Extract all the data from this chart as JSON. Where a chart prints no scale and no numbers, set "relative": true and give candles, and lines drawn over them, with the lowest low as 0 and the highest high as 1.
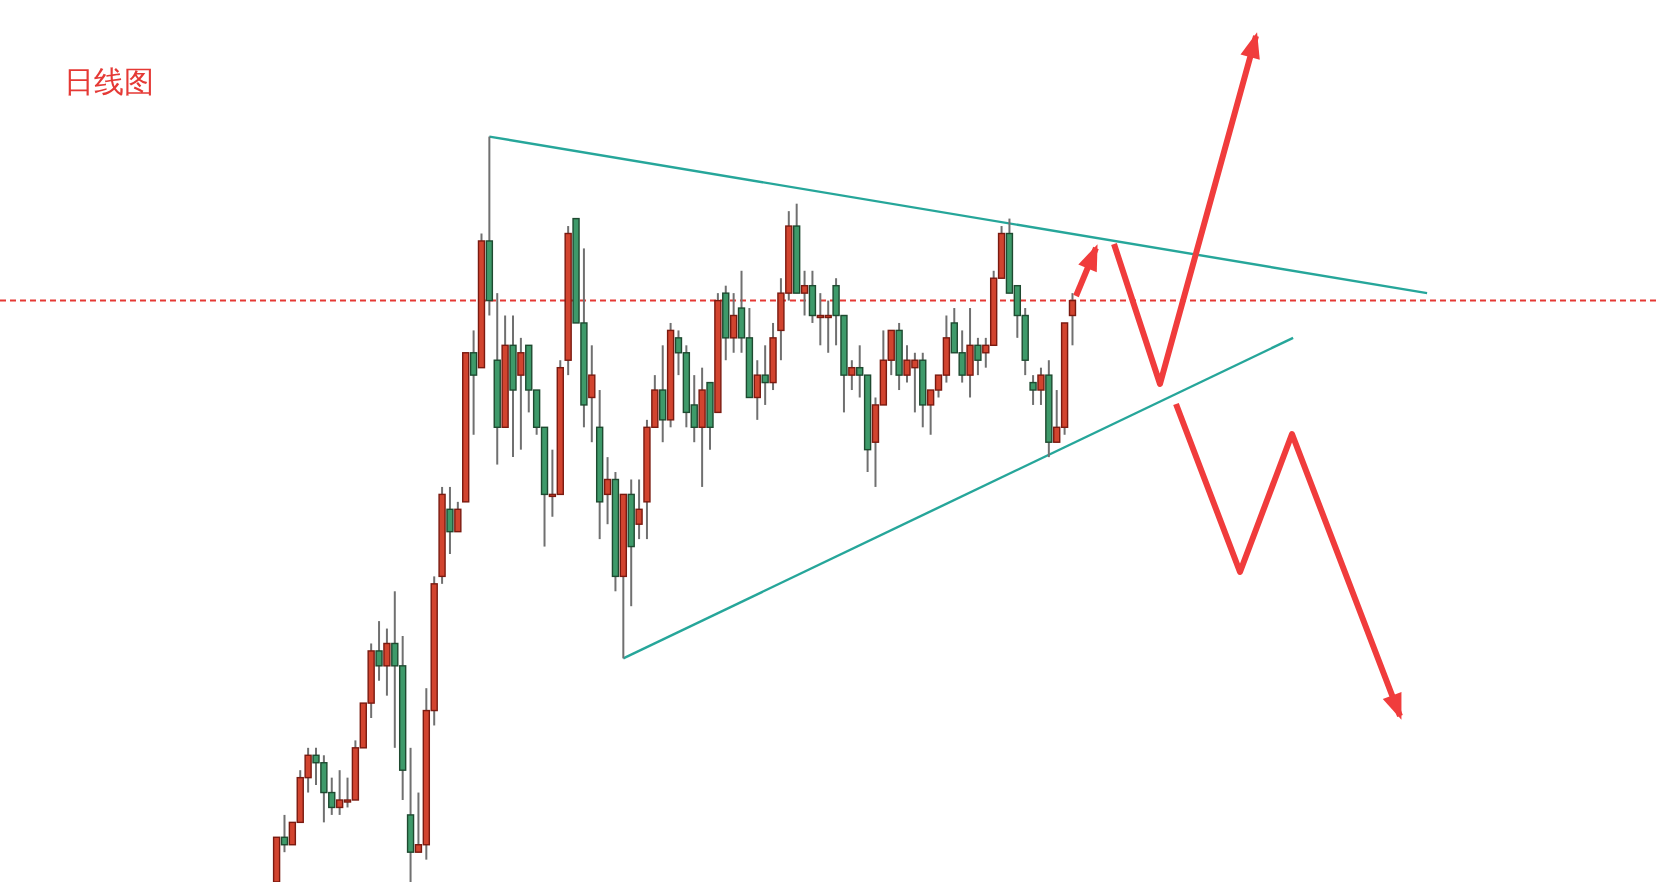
{
  "chart_data": {
    "type": "candlestick",
    "title": "日线图",
    "relative": true,
    "categories": [
      null,
      null,
      null,
      null,
      null,
      null,
      null,
      null,
      null,
      null,
      null,
      null,
      null,
      null,
      null,
      null,
      null,
      null,
      null,
      null,
      null,
      null,
      null,
      null,
      null,
      null,
      null,
      null,
      null,
      null,
      null,
      null,
      null,
      null,
      null,
      null,
      null,
      null,
      null,
      null,
      null,
      null,
      null,
      null,
      null,
      null,
      null,
      null,
      null,
      null,
      null,
      null,
      null,
      null,
      null,
      null,
      null,
      null,
      null,
      null,
      null,
      null,
      null,
      null,
      null,
      null,
      null,
      null,
      null,
      null,
      null,
      null,
      null,
      null,
      null,
      null,
      null,
      null,
      null,
      null,
      null,
      null,
      null,
      null,
      null,
      null,
      null,
      null,
      null,
      null,
      null,
      null,
      null,
      null,
      null,
      null,
      null,
      null,
      null,
      null,
      null,
      null,
      null,
      null,
      null,
      null,
      null,
      null,
      null,
      null,
      null,
      null,
      null,
      null,
      null,
      null,
      null,
      null,
      null,
      null,
      null,
      null,
      null,
      null,
      null,
      null,
      null,
      null,
      null,
      null,
      null,
      null,
      null,
      null,
      null,
      null,
      null,
      null,
      null,
      null,
      null,
      null,
      null,
      null,
      null,
      null,
      null
    ],
    "ohlc": [
      [
        0.0,
        0.06,
        0.0,
        0.06
      ],
      [
        0.06,
        0.09,
        0.04,
        0.05
      ],
      [
        0.05,
        0.08,
        0.05,
        0.08
      ],
      [
        0.08,
        0.15,
        0.08,
        0.14
      ],
      [
        0.14,
        0.18,
        0.12,
        0.17
      ],
      [
        0.17,
        0.18,
        0.13,
        0.16
      ],
      [
        0.16,
        0.17,
        0.08,
        0.12
      ],
      [
        0.12,
        0.14,
        0.09,
        0.1
      ],
      [
        0.1,
        0.15,
        0.09,
        0.11
      ],
      [
        0.11,
        0.14,
        0.1,
        0.11
      ],
      [
        0.11,
        0.19,
        0.11,
        0.18
      ],
      [
        0.18,
        0.24,
        0.18,
        0.24
      ],
      [
        0.24,
        0.32,
        0.22,
        0.31
      ],
      [
        0.31,
        0.35,
        0.27,
        0.29
      ],
      [
        0.29,
        0.34,
        0.25,
        0.32
      ],
      [
        0.32,
        0.39,
        0.18,
        0.29
      ],
      [
        0.29,
        0.33,
        0.11,
        0.15
      ],
      [
        0.09,
        0.18,
        0.0,
        0.04
      ],
      [
        0.04,
        0.12,
        0.04,
        0.05
      ],
      [
        0.05,
        0.26,
        0.03,
        0.23
      ],
      [
        0.23,
        0.41,
        0.21,
        0.4
      ],
      [
        0.41,
        0.53,
        0.4,
        0.52
      ],
      [
        0.5,
        0.53,
        0.44,
        0.47
      ],
      [
        0.47,
        0.51,
        0.47,
        0.5
      ],
      [
        0.51,
        0.71,
        0.51,
        0.71
      ],
      [
        0.71,
        0.74,
        0.6,
        0.68
      ],
      [
        0.69,
        0.87,
        0.69,
        0.86
      ],
      [
        0.86,
        1.0,
        0.76,
        0.78
      ],
      [
        0.7,
        0.79,
        0.56,
        0.61
      ],
      [
        0.61,
        0.76,
        0.61,
        0.72
      ],
      [
        0.72,
        0.76,
        0.57,
        0.66
      ],
      [
        0.68,
        0.73,
        0.58,
        0.71
      ],
      [
        0.72,
        0.72,
        0.63,
        0.66
      ],
      [
        0.66,
        0.66,
        0.6,
        0.61
      ],
      [
        0.61,
        0.61,
        0.45,
        0.52
      ],
      [
        0.52,
        0.58,
        0.49,
        0.52
      ],
      [
        0.52,
        0.7,
        0.52,
        0.69
      ],
      [
        0.7,
        0.88,
        0.68,
        0.87
      ],
      [
        0.89,
        0.89,
        0.75,
        0.75
      ],
      [
        0.75,
        0.85,
        0.61,
        0.64
      ],
      [
        0.65,
        0.72,
        0.59,
        0.68
      ],
      [
        0.61,
        0.66,
        0.46,
        0.51
      ],
      [
        0.52,
        0.57,
        0.48,
        0.54
      ],
      [
        0.54,
        0.55,
        0.39,
        0.41
      ],
      [
        0.41,
        0.52,
        0.3,
        0.52
      ],
      [
        0.52,
        0.54,
        0.37,
        0.45
      ],
      [
        0.48,
        0.54,
        0.46,
        0.5
      ],
      [
        0.51,
        0.62,
        0.46,
        0.61
      ],
      [
        0.61,
        0.68,
        0.61,
        0.66
      ],
      [
        0.66,
        0.72,
        0.59,
        0.62
      ],
      [
        0.62,
        0.75,
        0.61,
        0.74
      ],
      [
        0.73,
        0.74,
        0.68,
        0.71
      ],
      [
        0.71,
        0.72,
        0.61,
        0.63
      ],
      [
        0.64,
        0.68,
        0.59,
        0.61
      ],
      [
        0.61,
        0.69,
        0.53,
        0.66
      ],
      [
        0.67,
        0.67,
        0.58,
        0.61
      ],
      [
        0.63,
        0.79,
        0.63,
        0.78
      ],
      [
        0.79,
        0.8,
        0.7,
        0.73
      ],
      [
        0.73,
        0.79,
        0.71,
        0.76
      ],
      [
        0.77,
        0.82,
        0.71,
        0.73
      ],
      [
        0.73,
        0.77,
        0.65,
        0.65
      ],
      [
        0.65,
        0.7,
        0.62,
        0.68
      ],
      [
        0.68,
        0.72,
        0.64,
        0.67
      ],
      [
        0.67,
        0.75,
        0.66,
        0.73
      ],
      [
        0.74,
        0.81,
        0.7,
        0.79
      ],
      [
        0.79,
        0.9,
        0.78,
        0.88
      ],
      [
        0.88,
        0.91,
        0.79,
        0.79
      ],
      [
        0.79,
        0.82,
        0.76,
        0.8
      ],
      [
        0.8,
        0.82,
        0.75,
        0.76
      ],
      [
        0.76,
        0.79,
        0.72,
        0.76
      ],
      [
        0.76,
        0.78,
        0.71,
        0.76
      ],
      [
        0.8,
        0.81,
        0.72,
        0.76
      ],
      [
        0.76,
        0.76,
        0.63,
        0.68
      ],
      [
        0.68,
        0.7,
        0.66,
        0.69
      ],
      [
        0.69,
        0.72,
        0.65,
        0.68
      ],
      [
        0.68,
        0.68,
        0.55,
        0.58
      ],
      [
        0.59,
        0.65,
        0.53,
        0.64
      ],
      [
        0.64,
        0.74,
        0.64,
        0.7
      ],
      [
        0.7,
        0.74,
        0.68,
        0.74
      ],
      [
        0.74,
        0.75,
        0.66,
        0.68
      ],
      [
        0.68,
        0.72,
        0.67,
        0.7
      ],
      [
        0.69,
        0.71,
        0.63,
        0.7
      ],
      [
        0.7,
        0.71,
        0.61,
        0.64
      ],
      [
        0.64,
        0.66,
        0.6,
        0.66
      ],
      [
        0.66,
        0.68,
        0.65,
        0.68
      ],
      [
        0.68,
        0.76,
        0.67,
        0.73
      ],
      [
        0.75,
        0.77,
        0.71,
        0.71
      ],
      [
        0.71,
        0.74,
        0.67,
        0.68
      ],
      [
        0.68,
        0.77,
        0.65,
        0.72
      ],
      [
        0.72,
        0.73,
        0.68,
        0.7
      ],
      [
        0.71,
        0.73,
        0.69,
        0.72
      ],
      [
        0.72,
        0.82,
        0.72,
        0.81
      ],
      [
        0.81,
        0.88,
        0.81,
        0.87
      ],
      [
        0.87,
        0.89,
        0.79,
        0.79
      ],
      [
        0.8,
        0.8,
        0.73,
        0.76
      ],
      [
        0.76,
        0.77,
        0.68,
        0.7
      ],
      [
        0.67,
        0.68,
        0.64,
        0.66
      ],
      [
        0.66,
        0.69,
        0.64,
        0.68
      ],
      [
        0.68,
        0.7,
        0.57,
        0.59
      ],
      [
        0.59,
        0.66,
        0.59,
        0.61
      ],
      [
        0.61,
        0.75,
        0.6,
        0.75
      ],
      [
        0.76,
        0.79,
        0.72,
        0.78
      ],
      null,
      null,
      null,
      null,
      null,
      null,
      null,
      null,
      null,
      null,
      null,
      null,
      null,
      null,
      null,
      null,
      null,
      null,
      null,
      null,
      null,
      null,
      null,
      null,
      null,
      null,
      null,
      null,
      null,
      null,
      null,
      null,
      null,
      null,
      null,
      null,
      null,
      null,
      null,
      null,
      null,
      null,
      null,
      null,
      null
    ],
    "series": [
      {
        "type": "line",
        "color": "#26a69a",
        "values": [
          null,
          null,
          null,
          null,
          null,
          null,
          null,
          null,
          null,
          null,
          null,
          null,
          null,
          null,
          null,
          null,
          null,
          null,
          null,
          null,
          null,
          null,
          null,
          null,
          null,
          null,
          null,
          1.0,
          null,
          null,
          null,
          null,
          null,
          null,
          null,
          null,
          null,
          null,
          null,
          null,
          null,
          null,
          null,
          null,
          null,
          null,
          null,
          null,
          null,
          null,
          null,
          null,
          null,
          null,
          null,
          null,
          null,
          null,
          null,
          null,
          null,
          null,
          null,
          null,
          null,
          null,
          null,
          null,
          null,
          null,
          null,
          null,
          null,
          null,
          null,
          null,
          null,
          null,
          null,
          null,
          null,
          null,
          null,
          null,
          null,
          null,
          null,
          null,
          null,
          null,
          null,
          null,
          null,
          null,
          null,
          null,
          null,
          null,
          null,
          null,
          null,
          null,
          null,
          null,
          null,
          null,
          null,
          null,
          null,
          null,
          null,
          null,
          null,
          null,
          null,
          null,
          null,
          null,
          null,
          null,
          null,
          null,
          null,
          null,
          null,
          null,
          null,
          null,
          null,
          null,
          null,
          null,
          null,
          null,
          null,
          null,
          null,
          null,
          null,
          null,
          null,
          null,
          null,
          null,
          null,
          null,
          0.79
        ]
      },
      {
        "type": "line",
        "color": "#26a69a",
        "values": [
          null,
          null,
          null,
          null,
          null,
          null,
          null,
          null,
          null,
          null,
          null,
          null,
          null,
          null,
          null,
          null,
          null,
          null,
          null,
          null,
          null,
          null,
          null,
          null,
          null,
          null,
          null,
          null,
          null,
          null,
          null,
          null,
          null,
          null,
          null,
          null,
          null,
          null,
          null,
          null,
          null,
          null,
          null,
          null,
          0.3,
          null,
          null,
          null,
          null,
          null,
          null,
          null,
          null,
          null,
          null,
          null,
          null,
          null,
          null,
          null,
          null,
          null,
          null,
          null,
          null,
          null,
          null,
          null,
          null,
          null,
          null,
          null,
          null,
          null,
          null,
          null,
          null,
          null,
          null,
          null,
          null,
          null,
          null,
          null,
          null,
          null,
          null,
          null,
          null,
          null,
          null,
          null,
          null,
          null,
          null,
          null,
          null,
          null,
          null,
          null,
          null,
          null,
          null,
          null,
          null,
          null,
          null,
          null,
          null,
          null,
          null,
          null,
          null,
          null,
          null,
          null,
          null,
          null,
          null,
          null,
          null,
          null,
          null,
          null,
          null,
          null,
          null,
          null,
          null,
          0.73,
          null,
          null,
          null,
          null,
          null,
          null,
          null,
          null,
          null,
          null,
          null,
          null,
          null,
          null,
          null,
          null,
          null
        ]
      }
    ],
    "ref_lines": [
      {
        "axis": "y",
        "value": 0.78,
        "color": "#e53935",
        "line_style": "dashed"
      }
    ]
  }
}
